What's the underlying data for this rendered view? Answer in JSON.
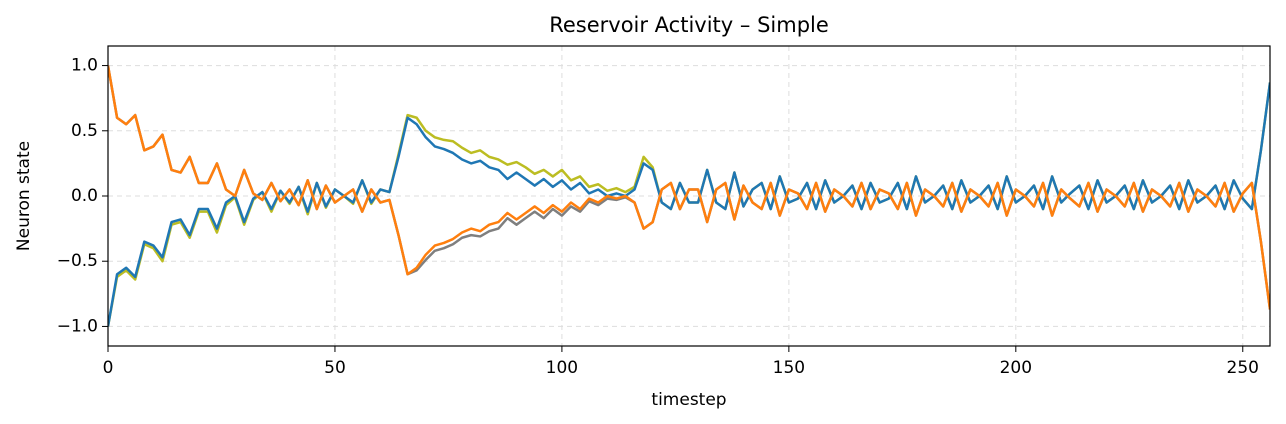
{
  "chart_data": {
    "type": "line",
    "title": "Reservoir Activity – Simple",
    "x_label": "timestep",
    "y_label": "Neuron state",
    "xlim": [
      0,
      256
    ],
    "ylim": [
      -1.15,
      1.15
    ],
    "xticks": [
      0,
      50,
      100,
      150,
      200,
      250
    ],
    "yticks": [
      {
        "value": -1.0,
        "label": "−1.0"
      },
      {
        "value": -0.5,
        "label": "−0.5"
      },
      {
        "value": 0,
        "label": "0.0"
      },
      {
        "value": 0.5,
        "label": "0.5"
      },
      {
        "value": 1.0,
        "label": "1.0"
      }
    ],
    "grid": true,
    "x": [
      0,
      2,
      4,
      6,
      8,
      10,
      12,
      14,
      16,
      18,
      20,
      22,
      24,
      26,
      28,
      30,
      32,
      34,
      36,
      38,
      40,
      42,
      44,
      46,
      48,
      50,
      52,
      54,
      56,
      58,
      60,
      62,
      64,
      66,
      68,
      70,
      72,
      74,
      76,
      78,
      80,
      82,
      84,
      86,
      88,
      90,
      92,
      94,
      96,
      98,
      100,
      102,
      104,
      106,
      108,
      110,
      112,
      114,
      116,
      118,
      120,
      122,
      124,
      126,
      128,
      130,
      132,
      134,
      136,
      138,
      140,
      142,
      144,
      146,
      148,
      150,
      152,
      154,
      156,
      158,
      160,
      162,
      164,
      166,
      168,
      170,
      172,
      174,
      176,
      178,
      180,
      182,
      184,
      186,
      188,
      190,
      192,
      194,
      196,
      198,
      200,
      202,
      204,
      206,
      208,
      210,
      212,
      214,
      216,
      218,
      220,
      222,
      224,
      226,
      228,
      230,
      232,
      234,
      236,
      238,
      240,
      242,
      244,
      246,
      248,
      250,
      252,
      254,
      256
    ],
    "series": [
      {
        "color": "#bcbd22",
        "values": [
          -1.0,
          -0.62,
          -0.57,
          -0.64,
          -0.37,
          -0.4,
          -0.5,
          -0.22,
          -0.2,
          -0.32,
          -0.12,
          -0.12,
          -0.28,
          -0.07,
          -0.01,
          -0.22,
          -0.03,
          0.03,
          -0.12,
          0.04,
          -0.06,
          0.07,
          -0.14,
          0.1,
          -0.09,
          0.05,
          0,
          -0.06,
          0.12,
          -0.06,
          0.05,
          0.03,
          0.32,
          0.62,
          0.6,
          0.5,
          0.45,
          0.43,
          0.42,
          0.37,
          0.33,
          0.35,
          0.3,
          0.28,
          0.24,
          0.26,
          0.22,
          0.17,
          0.2,
          0.15,
          0.2,
          0.12,
          0.15,
          0.07,
          0.09,
          0.04,
          0.06,
          0.03,
          0.07,
          0.3,
          0.22,
          -0.05,
          -0.1,
          0.1,
          -0.05,
          -0.05,
          0.2,
          -0.05,
          -0.1,
          0.18,
          -0.08,
          0.05,
          0.1,
          -0.1,
          0.15,
          -0.05,
          -0.02,
          0.1,
          -0.1,
          0.12,
          -0.05,
          0,
          0.08,
          -0.1,
          0.1,
          -0.05,
          -0.02,
          0.1,
          -0.1,
          0.15,
          -0.05,
          0,
          0.08,
          -0.1,
          0.12,
          -0.05,
          0,
          0.08,
          -0.1,
          0.15,
          -0.05,
          0,
          0.08,
          -0.1,
          0.15,
          -0.05,
          0.02,
          0.08,
          -0.1,
          0.12,
          -0.05,
          0,
          0.08,
          -0.1,
          0.12,
          -0.05,
          0,
          0.08,
          -0.1,
          0.12,
          -0.05,
          0,
          0.08,
          -0.1,
          0.12,
          -0.02,
          -0.1,
          0.35,
          0.87
        ]
      },
      {
        "color": "#7f7f7f",
        "values": [
          1.0,
          0.6,
          0.55,
          0.62,
          0.35,
          0.38,
          0.47,
          0.2,
          0.18,
          0.3,
          0.1,
          0.1,
          0.25,
          0.05,
          0,
          0.2,
          0.02,
          -0.03,
          0.1,
          -0.04,
          0.05,
          -0.07,
          0.12,
          -0.1,
          0.08,
          -0.05,
          0,
          0.05,
          -0.12,
          0.05,
          -0.05,
          -0.03,
          -0.3,
          -0.6,
          -0.57,
          -0.49,
          -0.42,
          -0.4,
          -0.37,
          -0.32,
          -0.3,
          -0.31,
          -0.27,
          -0.25,
          -0.17,
          -0.22,
          -0.17,
          -0.12,
          -0.17,
          -0.1,
          -0.15,
          -0.08,
          -0.12,
          -0.04,
          -0.07,
          -0.02,
          -0.03,
          -0.01,
          -0.05,
          -0.25,
          -0.2,
          0.05,
          0.1,
          -0.1,
          0.05,
          0.05,
          -0.2,
          0.05,
          0.1,
          -0.18,
          0.08,
          -0.05,
          -0.1,
          0.1,
          -0.15,
          0.05,
          0.02,
          -0.1,
          0.1,
          -0.12,
          0.05,
          0,
          -0.08,
          0.1,
          -0.1,
          0.05,
          0.02,
          -0.1,
          0.1,
          -0.15,
          0.05,
          0,
          -0.08,
          0.1,
          -0.12,
          0.05,
          0,
          -0.08,
          0.1,
          -0.15,
          0.05,
          0,
          -0.08,
          0.1,
          -0.15,
          0.05,
          -0.02,
          -0.08,
          0.1,
          -0.12,
          0.05,
          0,
          -0.08,
          0.1,
          -0.12,
          0.05,
          0,
          -0.08,
          0.1,
          -0.12,
          0.05,
          0,
          -0.08,
          0.1,
          -0.12,
          0.02,
          0.1,
          -0.35,
          -0.87
        ]
      },
      {
        "color": "#1f77b4",
        "values": [
          -1.0,
          -0.6,
          -0.55,
          -0.62,
          -0.35,
          -0.38,
          -0.47,
          -0.2,
          -0.18,
          -0.3,
          -0.1,
          -0.1,
          -0.25,
          -0.05,
          0,
          -0.2,
          -0.02,
          0.03,
          -0.1,
          0.04,
          -0.05,
          0.07,
          -0.12,
          0.1,
          -0.08,
          0.05,
          0,
          -0.05,
          0.12,
          -0.05,
          0.05,
          0.03,
          0.3,
          0.6,
          0.55,
          0.45,
          0.38,
          0.36,
          0.33,
          0.28,
          0.25,
          0.27,
          0.22,
          0.2,
          0.13,
          0.18,
          0.13,
          0.08,
          0.13,
          0.07,
          0.12,
          0.05,
          0.1,
          0.02,
          0.05,
          0,
          0.02,
          0,
          0.05,
          0.25,
          0.2,
          -0.05,
          -0.1,
          0.1,
          -0.05,
          -0.05,
          0.2,
          -0.05,
          -0.1,
          0.18,
          -0.08,
          0.05,
          0.1,
          -0.1,
          0.15,
          -0.05,
          -0.02,
          0.1,
          -0.1,
          0.12,
          -0.05,
          0,
          0.08,
          -0.1,
          0.1,
          -0.05,
          -0.02,
          0.1,
          -0.1,
          0.15,
          -0.05,
          0,
          0.08,
          -0.1,
          0.12,
          -0.05,
          0,
          0.08,
          -0.1,
          0.15,
          -0.05,
          0,
          0.08,
          -0.1,
          0.15,
          -0.05,
          0.02,
          0.08,
          -0.1,
          0.12,
          -0.05,
          0,
          0.08,
          -0.1,
          0.12,
          -0.05,
          0,
          0.08,
          -0.1,
          0.12,
          -0.05,
          0,
          0.08,
          -0.1,
          0.12,
          -0.02,
          -0.1,
          0.35,
          0.87
        ]
      },
      {
        "color": "#ff7f0e",
        "values": [
          1.0,
          0.6,
          0.55,
          0.62,
          0.35,
          0.38,
          0.47,
          0.2,
          0.18,
          0.3,
          0.1,
          0.1,
          0.25,
          0.05,
          0,
          0.2,
          0.02,
          -0.03,
          0.1,
          -0.04,
          0.05,
          -0.07,
          0.12,
          -0.1,
          0.08,
          -0.05,
          0,
          0.05,
          -0.12,
          0.05,
          -0.05,
          -0.03,
          -0.3,
          -0.6,
          -0.55,
          -0.45,
          -0.38,
          -0.36,
          -0.33,
          -0.28,
          -0.25,
          -0.27,
          -0.22,
          -0.2,
          -0.13,
          -0.18,
          -0.13,
          -0.08,
          -0.13,
          -0.07,
          -0.12,
          -0.05,
          -0.1,
          -0.02,
          -0.05,
          0,
          -0.02,
          0,
          -0.05,
          -0.25,
          -0.2,
          0.05,
          0.1,
          -0.1,
          0.05,
          0.05,
          -0.2,
          0.05,
          0.1,
          -0.18,
          0.08,
          -0.05,
          -0.1,
          0.1,
          -0.15,
          0.05,
          0.02,
          -0.1,
          0.1,
          -0.12,
          0.05,
          0,
          -0.08,
          0.1,
          -0.1,
          0.05,
          0.02,
          -0.1,
          0.1,
          -0.15,
          0.05,
          0,
          -0.08,
          0.1,
          -0.12,
          0.05,
          0,
          -0.08,
          0.1,
          -0.15,
          0.05,
          0,
          -0.08,
          0.1,
          -0.15,
          0.05,
          -0.02,
          -0.08,
          0.1,
          -0.12,
          0.05,
          0,
          -0.08,
          0.1,
          -0.12,
          0.05,
          0,
          -0.08,
          0.1,
          -0.12,
          0.05,
          0,
          -0.08,
          0.1,
          -0.12,
          0.02,
          0.1,
          -0.35,
          -0.87
        ]
      }
    ]
  }
}
